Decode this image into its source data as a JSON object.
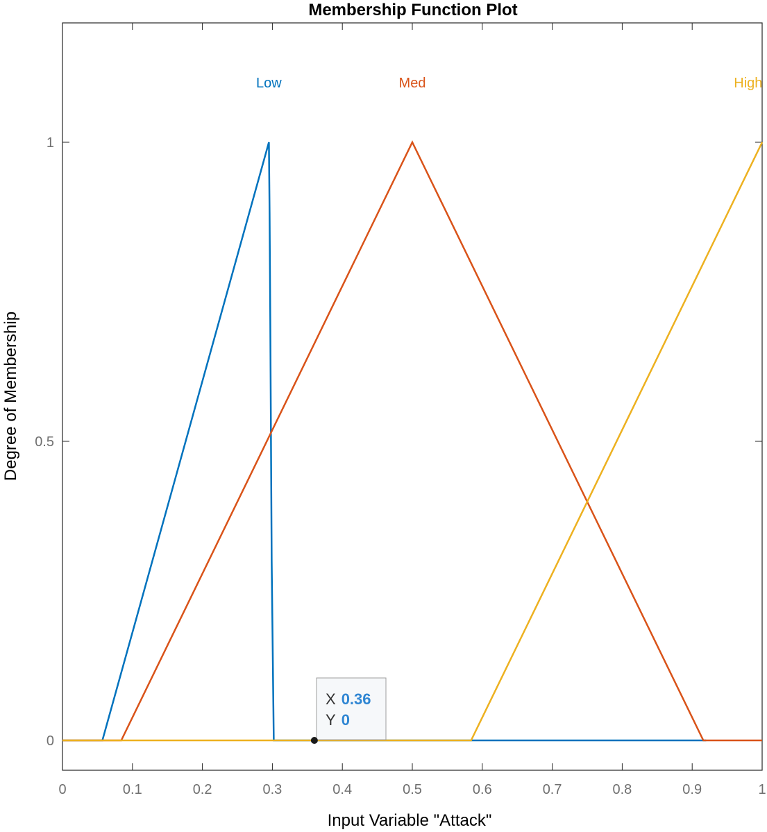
{
  "chart_data": {
    "type": "line",
    "title": "Membership Function Plot",
    "xlabel": "Input Variable \"Attack\"",
    "ylabel": "Degree of Membership",
    "xlim": [
      0,
      1
    ],
    "ylim": [
      -0.05,
      1.2
    ],
    "xticks": [
      0,
      0.1,
      0.2,
      0.3,
      0.4,
      0.5,
      0.6,
      0.7,
      0.8,
      0.9,
      1
    ],
    "xtick_labels": [
      "0",
      "0.1",
      "0.2",
      "0.3",
      "0.4",
      "0.5",
      "0.6",
      "0.7",
      "0.8",
      "0.9",
      "1"
    ],
    "yticks": [
      0,
      0.5,
      1
    ],
    "ytick_labels": [
      "0",
      "0.5",
      "1"
    ],
    "grid": false,
    "series": [
      {
        "name": "Low",
        "color": "#0072BD",
        "label_x": 0.295,
        "points": [
          [
            0,
            0
          ],
          [
            0.057,
            0
          ],
          [
            0.295,
            1
          ],
          [
            0.296,
            0.88
          ],
          [
            0.297,
            0.7
          ],
          [
            0.298,
            0.5
          ],
          [
            0.299,
            0.3
          ],
          [
            0.3,
            0.2
          ],
          [
            0.302,
            0
          ],
          [
            0.92,
            0
          ]
        ]
      },
      {
        "name": "Med",
        "color": "#D95319",
        "label_x": 0.5,
        "points": [
          [
            0,
            0
          ],
          [
            0.084,
            0
          ],
          [
            0.5,
            1
          ],
          [
            0.916,
            0
          ],
          [
            1,
            0
          ]
        ]
      },
      {
        "name": "High",
        "color": "#EDB120",
        "label_x": 0.98,
        "points": [
          [
            0,
            0
          ],
          [
            0.584,
            0
          ],
          [
            1,
            1
          ]
        ]
      }
    ],
    "datatip": {
      "x_label": "X",
      "x_value": "0.36",
      "y_label": "Y",
      "y_value": "0",
      "point": [
        0.36,
        0
      ]
    }
  }
}
